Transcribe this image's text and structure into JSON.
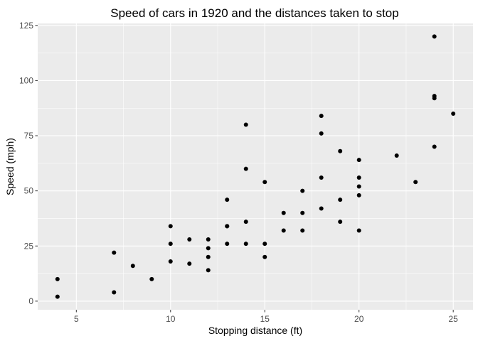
{
  "chart_data": {
    "type": "scatter",
    "title": "Speed of cars in 1920 and the distances taken to stop",
    "xlabel": "Stopping distance (ft)",
    "ylabel": "Speed (mph)",
    "xlim": [
      2.95,
      26.05
    ],
    "ylim": [
      -3.9,
      125.9
    ],
    "xticks": [
      5,
      10,
      15,
      20,
      25
    ],
    "xtick_labels": [
      "5",
      "10",
      "15",
      "20",
      "25"
    ],
    "yticks": [
      0,
      25,
      50,
      75,
      100,
      125
    ],
    "ytick_labels": [
      "0",
      "25",
      "50",
      "75",
      "100",
      "125"
    ],
    "grid": true,
    "legend": "none",
    "colors": {
      "panel_background": "#ebebeb",
      "grid": "#ffffff",
      "point": "#000000",
      "tick_label": "#4d4d4d",
      "tick_mark": "#333333"
    },
    "points": [
      [
        4,
        2
      ],
      [
        4,
        10
      ],
      [
        7,
        4
      ],
      [
        7,
        22
      ],
      [
        8,
        16
      ],
      [
        9,
        10
      ],
      [
        10,
        18
      ],
      [
        10,
        26
      ],
      [
        10,
        34
      ],
      [
        11,
        17
      ],
      [
        11,
        28
      ],
      [
        12,
        14
      ],
      [
        12,
        20
      ],
      [
        12,
        24
      ],
      [
        12,
        28
      ],
      [
        13,
        26
      ],
      [
        13,
        34
      ],
      [
        13,
        34
      ],
      [
        13,
        46
      ],
      [
        14,
        26
      ],
      [
        14,
        36
      ],
      [
        14,
        60
      ],
      [
        14,
        80
      ],
      [
        15,
        20
      ],
      [
        15,
        26
      ],
      [
        15,
        54
      ],
      [
        16,
        32
      ],
      [
        16,
        40
      ],
      [
        17,
        32
      ],
      [
        17,
        40
      ],
      [
        17,
        50
      ],
      [
        18,
        42
      ],
      [
        18,
        56
      ],
      [
        18,
        76
      ],
      [
        18,
        84
      ],
      [
        19,
        36
      ],
      [
        19,
        46
      ],
      [
        19,
        68
      ],
      [
        20,
        32
      ],
      [
        20,
        48
      ],
      [
        20,
        52
      ],
      [
        20,
        56
      ],
      [
        20,
        64
      ],
      [
        22,
        66
      ],
      [
        23,
        54
      ],
      [
        24,
        70
      ],
      [
        24,
        92
      ],
      [
        24,
        93
      ],
      [
        24,
        120
      ],
      [
        25,
        85
      ]
    ]
  }
}
